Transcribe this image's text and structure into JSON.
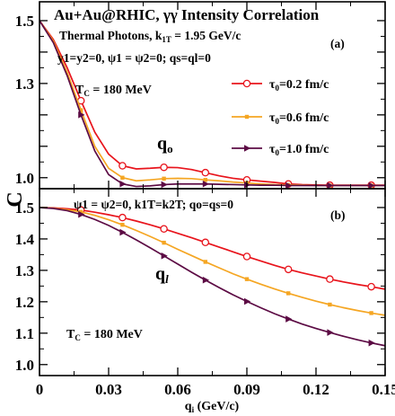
{
  "chart_data": [
    {
      "panel": "(a)",
      "type": "line",
      "title": "Au+Au@RHIC, γγ Intensity  Correlation",
      "subtitle": "Thermal Photons, k",
      "subtitle_sub": "1T",
      "subtitle_rest": " = 1.95 GeV/c",
      "condition": "y1=y2=0, ψ1 = ψ2=0; qs=ql=0",
      "tc_label": "T",
      "tc_sub": "C",
      "tc_rest": " = 180 MeV",
      "curve_label": "q",
      "curve_sub": "o",
      "ylim": [
        0.965,
        1.56
      ],
      "yticks": [
        1.0,
        1.1,
        1.2,
        1.3,
        1.4,
        1.5
      ],
      "ytick_labels": [
        "1.0",
        "",
        "",
        "1.3",
        "",
        "1.5"
      ],
      "grid": false,
      "legend_position": "right",
      "series": [
        {
          "name": "τ0=0.2 fm/c",
          "legend_sym": "τ",
          "legend_sub": "0",
          "legend_rest": "=0.2 fm/c",
          "color": "#e8141c",
          "marker": "circle",
          "x": [
            0,
            0.006,
            0.012,
            0.018,
            0.024,
            0.03,
            0.036,
            0.042,
            0.048,
            0.054,
            0.06,
            0.066,
            0.072,
            0.078,
            0.084,
            0.09,
            0.096,
            0.102,
            0.108,
            0.114,
            0.12,
            0.126,
            0.132,
            0.138,
            0.144,
            0.15
          ],
          "y": [
            1.5,
            1.44,
            1.35,
            1.245,
            1.145,
            1.075,
            1.038,
            1.028,
            1.03,
            1.033,
            1.032,
            1.026,
            1.016,
            1.006,
            0.998,
            0.993,
            0.989,
            0.985,
            0.98,
            0.978,
            0.977,
            0.976,
            0.976,
            0.976,
            0.976,
            0.976
          ]
        },
        {
          "name": "τ0=0.6 fm/c",
          "legend_sym": "τ",
          "legend_sub": "0",
          "legend_rest": "=0.6 fm/c",
          "color": "#f5a623",
          "marker": "square",
          "x": [
            0,
            0.006,
            0.012,
            0.018,
            0.024,
            0.03,
            0.036,
            0.042,
            0.048,
            0.054,
            0.06,
            0.066,
            0.072,
            0.078,
            0.084,
            0.09,
            0.096,
            0.102,
            0.108,
            0.114,
            0.12,
            0.126,
            0.132,
            0.138,
            0.144,
            0.15
          ],
          "y": [
            1.5,
            1.435,
            1.335,
            1.215,
            1.1,
            1.03,
            1.0,
            0.99,
            0.993,
            0.997,
            0.998,
            0.997,
            0.993,
            0.99,
            0.986,
            0.983,
            0.98,
            0.978,
            0.977,
            0.976,
            0.975,
            0.975,
            0.975,
            0.975,
            0.975,
            0.975
          ]
        },
        {
          "name": "τ0=1.0 fm/c",
          "legend_sym": "τ",
          "legend_sub": "0",
          "legend_rest": "=1.0 fm/c",
          "color": "#5c0b44",
          "marker": "triangle-right",
          "x": [
            0,
            0.006,
            0.012,
            0.018,
            0.024,
            0.03,
            0.036,
            0.042,
            0.048,
            0.054,
            0.06,
            0.066,
            0.072,
            0.078,
            0.084,
            0.09,
            0.096,
            0.102,
            0.108,
            0.114,
            0.12,
            0.126,
            0.132,
            0.138,
            0.144,
            0.15
          ],
          "y": [
            1.5,
            1.43,
            1.325,
            1.2,
            1.085,
            1.01,
            0.98,
            0.972,
            0.974,
            0.978,
            0.98,
            0.98,
            0.98,
            0.979,
            0.978,
            0.977,
            0.976,
            0.976,
            0.975,
            0.975,
            0.975,
            0.975,
            0.975,
            0.975,
            0.975,
            0.975
          ]
        }
      ]
    },
    {
      "panel": "(b)",
      "type": "line",
      "condition": "ψ1 = ψ2=0, k1T=k2T; qo=qs=0",
      "tc_label": "T",
      "tc_sub": "C",
      "tc_rest": " = 180 MeV",
      "curve_label": "q",
      "curve_sub": "l",
      "xlabel": "q",
      "xlabel_sub": "i",
      "xlabel_rest": " (GeV/c)",
      "ylabel": "C",
      "xlim": [
        0,
        0.15
      ],
      "xticks": [
        0,
        0.03,
        0.06,
        0.09,
        0.12,
        0.15
      ],
      "xtick_labels": [
        "0",
        "0.03",
        "0.06",
        "0.09",
        "0.12",
        "0.15"
      ],
      "ylim": [
        0.965,
        1.56
      ],
      "yticks": [
        1.0,
        1.1,
        1.2,
        1.3,
        1.4,
        1.5
      ],
      "ytick_labels": [
        "1.0",
        "1.1",
        "1.2",
        "1.3",
        "1.4",
        "1.5"
      ],
      "grid": false,
      "series": [
        {
          "name": "τ0=0.2 fm/c",
          "color": "#e8141c",
          "marker": "circle",
          "x": [
            0,
            0.006,
            0.012,
            0.018,
            0.024,
            0.03,
            0.036,
            0.042,
            0.048,
            0.054,
            0.06,
            0.066,
            0.072,
            0.078,
            0.084,
            0.09,
            0.096,
            0.102,
            0.108,
            0.114,
            0.12,
            0.126,
            0.132,
            0.138,
            0.144,
            0.15
          ],
          "y": [
            1.5,
            1.499,
            1.496,
            1.492,
            1.485,
            1.477,
            1.468,
            1.457,
            1.445,
            1.432,
            1.418,
            1.404,
            1.389,
            1.374,
            1.359,
            1.344,
            1.33,
            1.316,
            1.303,
            1.292,
            1.282,
            1.272,
            1.263,
            1.255,
            1.248,
            1.24
          ]
        },
        {
          "name": "τ0=0.6 fm/c",
          "color": "#f5a623",
          "marker": "square",
          "x": [
            0,
            0.006,
            0.012,
            0.018,
            0.024,
            0.03,
            0.036,
            0.042,
            0.048,
            0.054,
            0.06,
            0.066,
            0.072,
            0.078,
            0.084,
            0.09,
            0.096,
            0.102,
            0.108,
            0.114,
            0.12,
            0.126,
            0.132,
            0.138,
            0.144,
            0.15
          ],
          "y": [
            1.5,
            1.498,
            1.493,
            1.486,
            1.475,
            1.461,
            1.445,
            1.427,
            1.408,
            1.388,
            1.367,
            1.347,
            1.327,
            1.308,
            1.289,
            1.272,
            1.256,
            1.241,
            1.227,
            1.214,
            1.202,
            1.191,
            1.181,
            1.172,
            1.164,
            1.157
          ]
        },
        {
          "name": "τ0=1.0 fm/c",
          "color": "#5c0b44",
          "marker": "triangle-right",
          "x": [
            0,
            0.006,
            0.012,
            0.018,
            0.024,
            0.03,
            0.036,
            0.042,
            0.048,
            0.054,
            0.06,
            0.066,
            0.072,
            0.078,
            0.084,
            0.09,
            0.096,
            0.102,
            0.108,
            0.114,
            0.12,
            0.126,
            0.132,
            0.138,
            0.144,
            0.15
          ],
          "y": [
            1.5,
            1.497,
            1.49,
            1.478,
            1.462,
            1.443,
            1.421,
            1.397,
            1.372,
            1.346,
            1.32,
            1.294,
            1.269,
            1.245,
            1.222,
            1.201,
            1.181,
            1.162,
            1.145,
            1.129,
            1.115,
            1.102,
            1.09,
            1.079,
            1.069,
            1.06
          ]
        }
      ]
    }
  ]
}
